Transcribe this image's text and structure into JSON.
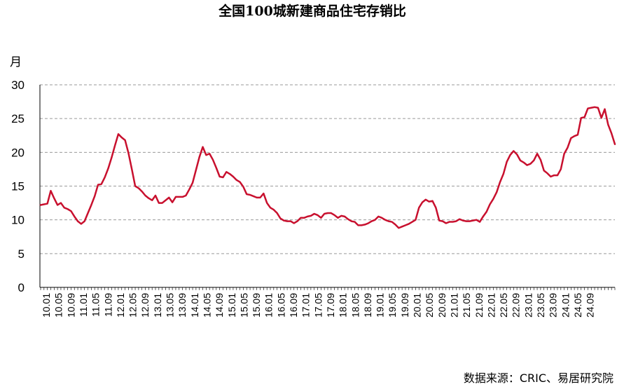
{
  "chart_data": {
    "type": "line",
    "title": "全国100城新建商品住宅存销比",
    "ylabel": "月",
    "source": "数据来源：CRIC、易居研究院",
    "ylim": [
      0,
      30
    ],
    "yticks": [
      0,
      5,
      10,
      15,
      20,
      25,
      30
    ],
    "grid": true,
    "line_color": "#c8102e",
    "x_tick_labels": [
      "10.01",
      "10.05",
      "10.09",
      "11.01",
      "11.05",
      "11.09",
      "12.01",
      "12.05",
      "12.09",
      "13.01",
      "13.05",
      "13.09",
      "14.01",
      "14.05",
      "14.09",
      "15.01",
      "15.05",
      "15.09",
      "16.01",
      "16.05",
      "16.09",
      "17.01",
      "17.05",
      "17.09",
      "18.01",
      "18.05",
      "18.09",
      "19.01",
      "19.05",
      "19.09",
      "20.01",
      "20.05",
      "20.09",
      "21.01",
      "21.05",
      "21.09",
      "22.01",
      "22.05",
      "22.09",
      "23.01",
      "23.05",
      "23.09",
      "24.01",
      "24.05",
      "24.09"
    ],
    "series": [
      {
        "values": [
          12.2,
          12.3,
          12.4,
          14.3,
          13.2,
          12.2,
          12.5,
          11.8,
          11.6,
          11.3,
          10.5,
          9.8,
          9.4,
          9.8,
          11.0,
          12.2,
          13.5,
          15.2,
          15.3,
          16.3,
          17.6,
          19.2,
          21.0,
          22.7,
          22.2,
          21.8,
          19.9,
          17.5,
          15.0,
          14.7,
          14.2,
          13.6,
          13.2,
          12.9,
          13.6,
          12.5,
          12.5,
          12.9,
          13.3,
          12.6,
          13.4,
          13.4,
          13.4,
          13.6,
          14.5,
          15.5,
          17.4,
          19.3,
          20.8,
          19.6,
          19.8,
          18.9,
          17.7,
          16.4,
          16.3,
          17.1,
          16.8,
          16.4,
          15.9,
          15.6,
          14.9,
          13.8,
          13.7,
          13.5,
          13.3,
          13.3,
          13.9,
          12.5,
          11.8,
          11.5,
          11.0,
          10.2,
          9.9,
          9.8,
          9.8,
          9.5,
          9.8,
          10.3,
          10.3,
          10.5,
          10.6,
          10.9,
          10.7,
          10.3,
          10.9,
          11.0,
          11.0,
          10.7,
          10.3,
          10.6,
          10.5,
          10.1,
          9.8,
          9.7,
          9.2,
          9.2,
          9.3,
          9.5,
          9.8,
          10.0,
          10.5,
          10.3,
          10.0,
          9.8,
          9.7,
          9.3,
          8.8,
          9.0,
          9.2,
          9.4,
          9.7,
          10.0,
          11.8,
          12.6,
          13.0,
          12.7,
          12.8,
          11.8,
          9.9,
          9.8,
          9.5,
          9.7,
          9.7,
          9.8,
          10.1,
          9.9,
          9.8,
          9.8,
          9.9,
          10.0,
          9.7,
          10.5,
          11.2,
          12.3,
          13.1,
          14.1,
          15.6,
          16.8,
          18.6,
          19.6,
          20.2,
          19.7,
          18.8,
          18.5,
          18.1,
          18.3,
          18.8,
          19.8,
          18.9,
          17.3,
          16.9,
          16.4,
          16.6,
          16.6,
          17.5,
          19.8,
          20.7,
          22.1,
          22.4,
          22.6,
          25.1,
          25.2,
          26.5,
          26.6,
          26.7,
          26.6,
          25.1,
          26.4,
          24.1,
          22.8,
          21.2
        ]
      }
    ]
  }
}
